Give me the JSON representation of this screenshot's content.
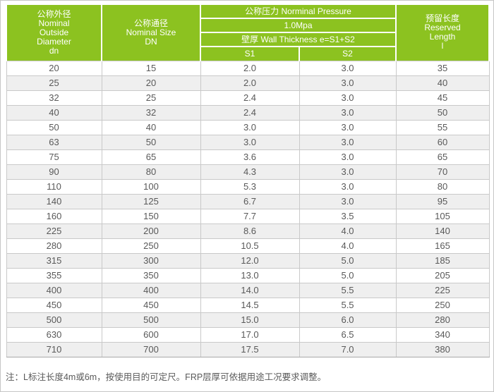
{
  "colors": {
    "header_green": "#8cc220",
    "header_text": "#ffffff",
    "row_stripe": "#efefef",
    "grid_border": "#c9c9c9",
    "body_text": "#595959"
  },
  "table": {
    "header": {
      "outside_diameter": "公称外径\nNominal\nOutside\nDiameter\ndn",
      "nominal_size": "公称通径\nNominal Size\nDN",
      "nominal_pressure": "公称压力 Norminal Pressure",
      "pressure_value": "1.0Mpa",
      "wall_thickness": "壁厚 Wall Thickness e=S1+S2",
      "s1": "S1",
      "s2": "S2",
      "reserved_length": "预留长度\nReserved\nLength\nl"
    },
    "columns": [
      "dn",
      "DN",
      "S1",
      "S2",
      "l"
    ],
    "rows": [
      [
        "20",
        "15",
        "2.0",
        "3.0",
        "35"
      ],
      [
        "25",
        "20",
        "2.0",
        "3.0",
        "40"
      ],
      [
        "32",
        "25",
        "2.4",
        "3.0",
        "45"
      ],
      [
        "40",
        "32",
        "2.4",
        "3.0",
        "50"
      ],
      [
        "50",
        "40",
        "3.0",
        "3.0",
        "55"
      ],
      [
        "63",
        "50",
        "3.0",
        "3.0",
        "60"
      ],
      [
        "75",
        "65",
        "3.6",
        "3.0",
        "65"
      ],
      [
        "90",
        "80",
        "4.3",
        "3.0",
        "70"
      ],
      [
        "110",
        "100",
        "5.3",
        "3.0",
        "80"
      ],
      [
        "140",
        "125",
        "6.7",
        "3.0",
        "95"
      ],
      [
        "160",
        "150",
        "7.7",
        "3.5",
        "105"
      ],
      [
        "225",
        "200",
        "8.6",
        "4.0",
        "140"
      ],
      [
        "280",
        "250",
        "10.5",
        "4.0",
        "165"
      ],
      [
        "315",
        "300",
        "12.0",
        "5.0",
        "185"
      ],
      [
        "355",
        "350",
        "13.0",
        "5.0",
        "205"
      ],
      [
        "400",
        "400",
        "14.0",
        "5.5",
        "225"
      ],
      [
        "450",
        "450",
        "14.5",
        "5.5",
        "250"
      ],
      [
        "500",
        "500",
        "15.0",
        "6.0",
        "280"
      ],
      [
        "630",
        "600",
        "17.0",
        "6.5",
        "340"
      ],
      [
        "710",
        "700",
        "17.5",
        "7.0",
        "380"
      ]
    ]
  },
  "footnote": "注：L标注长度4m或6m，按使用目的可定尺。FRP层厚可依据用途工况要求调整。"
}
